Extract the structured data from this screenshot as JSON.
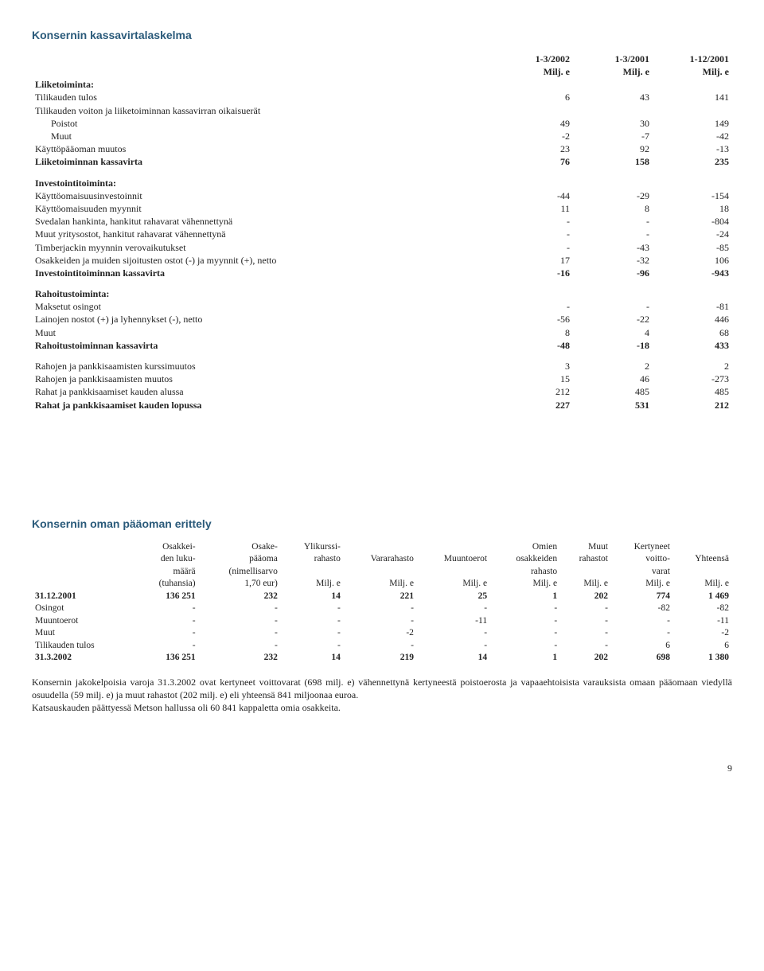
{
  "cashflow": {
    "title": "Konsernin kassavirtalaskelma",
    "periods": [
      "1-3/2002",
      "1-3/2001",
      "1-12/2001"
    ],
    "unit": "Milj. e",
    "sections": {
      "operating": {
        "header": "Liiketoiminta:",
        "rows": [
          {
            "label": "Tilikauden tulos",
            "v": [
              "6",
              "43",
              "141"
            ]
          },
          {
            "label": "Tilikauden voiton ja liiketoiminnan kassavirran oikaisuerät",
            "v": [
              "",
              "",
              ""
            ]
          },
          {
            "label": "Poistot",
            "indent": true,
            "v": [
              "49",
              "30",
              "149"
            ]
          },
          {
            "label": "Muut",
            "indent": true,
            "v": [
              "-2",
              "-7",
              "-42"
            ]
          },
          {
            "label": "Käyttöpääoman muutos",
            "v": [
              "23",
              "92",
              "-13"
            ]
          }
        ],
        "total": {
          "label": "Liiketoiminnan kassavirta",
          "v": [
            "76",
            "158",
            "235"
          ]
        }
      },
      "investing": {
        "header": "Investointitoiminta:",
        "rows": [
          {
            "label": "Käyttöomaisuusinvestoinnit",
            "v": [
              "-44",
              "-29",
              "-154"
            ]
          },
          {
            "label": "Käyttöomaisuuden myynnit",
            "v": [
              "11",
              "8",
              "18"
            ]
          },
          {
            "label": "Svedalan hankinta, hankitut rahavarat vähennettynä",
            "v": [
              "-",
              "-",
              "-804"
            ]
          },
          {
            "label": "Muut yritysostot, hankitut rahavarat vähennettynä",
            "v": [
              "-",
              "-",
              "-24"
            ]
          },
          {
            "label": "Timberjackin myynnin verovaikutukset",
            "v": [
              "-",
              "-43",
              "-85"
            ]
          },
          {
            "label": "Osakkeiden ja muiden sijoitusten ostot (-) ja myynnit (+), netto",
            "v": [
              "17",
              "-32",
              "106"
            ]
          }
        ],
        "total": {
          "label": "Investointitoiminnan kassavirta",
          "v": [
            "-16",
            "-96",
            "-943"
          ]
        }
      },
      "financing": {
        "header": "Rahoitustoiminta:",
        "rows": [
          {
            "label": "Maksetut osingot",
            "v": [
              "-",
              "-",
              "-81"
            ]
          },
          {
            "label": "Lainojen nostot (+) ja lyhennykset (-), netto",
            "v": [
              "-56",
              "-22",
              "446"
            ]
          },
          {
            "label": "Muut",
            "v": [
              "8",
              "4",
              "68"
            ]
          }
        ],
        "total": {
          "label": "Rahoitustoiminnan kassavirta",
          "v": [
            "-48",
            "-18",
            "433"
          ]
        }
      },
      "summary": {
        "rows": [
          {
            "label": "Rahojen ja pankkisaamisten kurssimuutos",
            "v": [
              "3",
              "2",
              "2"
            ]
          },
          {
            "label": "Rahojen ja pankkisaamisten muutos",
            "v": [
              "15",
              "46",
              "-273"
            ]
          },
          {
            "label": "Rahat ja pankkisaamiset kauden alussa",
            "v": [
              "212",
              "485",
              "485"
            ]
          }
        ],
        "total": {
          "label": "Rahat ja pankkisaamiset kauden lopussa",
          "v": [
            "227",
            "531",
            "212"
          ]
        }
      }
    }
  },
  "equity": {
    "title": "Konsernin oman pääoman erittely",
    "headers": {
      "c1": [
        "Osakkei-",
        "den luku-",
        "määrä",
        "(tuhansia)"
      ],
      "c2": [
        "Osake-",
        "pääoma",
        "(nimellisarvo",
        "1,70 eur)"
      ],
      "c3": [
        "Ylikurssi-",
        "rahasto",
        "",
        "Milj. e"
      ],
      "c4": [
        "",
        "Vararahasto",
        "",
        "Milj. e"
      ],
      "c5": [
        "",
        "Muuntoerot",
        "",
        "Milj. e"
      ],
      "c6": [
        "Omien",
        "osakkeiden",
        "rahasto",
        "Milj. e"
      ],
      "c7": [
        "Muut",
        "rahastot",
        "",
        "Milj. e"
      ],
      "c8": [
        "Kertyneet",
        "voitto-",
        "varat",
        "Milj. e"
      ],
      "c9": [
        "",
        "Yhteensä",
        "",
        "Milj. e"
      ]
    },
    "rows": [
      {
        "label": "31.12.2001",
        "bold": true,
        "v": [
          "136 251",
          "232",
          "14",
          "221",
          "25",
          "1",
          "202",
          "774",
          "1 469"
        ]
      },
      {
        "label": "Osingot",
        "v": [
          "-",
          "-",
          "-",
          "-",
          "-",
          "-",
          "-",
          "-82",
          "-82"
        ]
      },
      {
        "label": "Muuntoerot",
        "v": [
          "-",
          "-",
          "-",
          "-",
          "-11",
          "-",
          "-",
          "-",
          "-11"
        ]
      },
      {
        "label": "Muut",
        "v": [
          "-",
          "-",
          "-",
          "-2",
          "-",
          "-",
          "-",
          "-",
          "-2"
        ]
      },
      {
        "label": "Tilikauden tulos",
        "v": [
          "-",
          "-",
          "-",
          "-",
          "-",
          "-",
          "-",
          "6",
          "6"
        ]
      },
      {
        "label": "31.3.2002",
        "bold": true,
        "v": [
          "136 251",
          "232",
          "14",
          "219",
          "14",
          "1",
          "202",
          "698",
          "1 380"
        ]
      }
    ]
  },
  "notes": {
    "p1": "Konsernin jakokelpoisia varoja 31.3.2002 ovat kertyneet voittovarat (698 milj. e) vähennettynä kertyneestä poistoerosta ja vapaaehtoisista varauksista omaan pääomaan viedyllä osuudella (59 milj. e) ja muut rahastot (202 milj. e) eli yhteensä 841 miljoonaa euroa.",
    "p2": "Katsauskauden päättyessä Metson hallussa oli 60 841 kappaletta omia osakkeita."
  },
  "pageNumber": "9"
}
